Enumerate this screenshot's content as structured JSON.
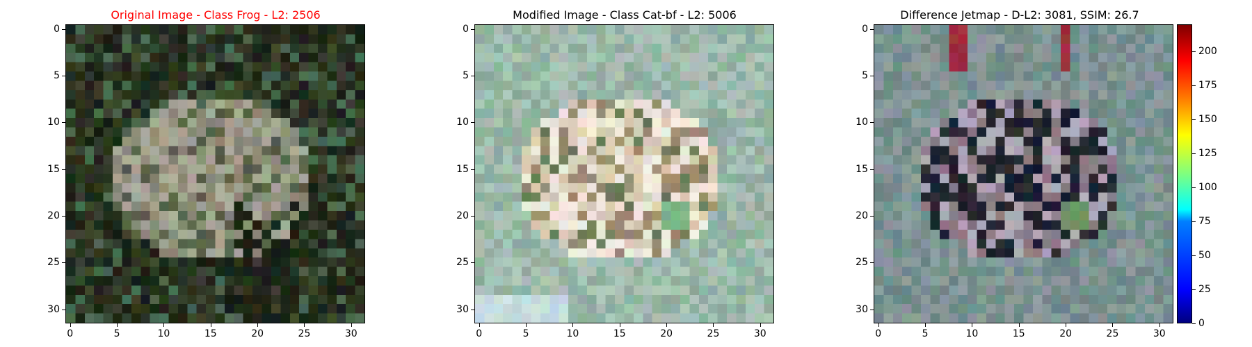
{
  "panels": [
    {
      "title": "Original Image - Class Frog - L2: 2506",
      "title_color": "#ff0000",
      "image": "frog-photo",
      "palette": [
        "#2a3320",
        "#3a4530",
        "#56604a",
        "#8c8c78",
        "#a8a896",
        "#1c2418",
        "#4a6a50"
      ]
    },
    {
      "title": "Modified Image - Class Cat-bf - L2: 5006",
      "title_color": "#000000",
      "image": "modified-photo",
      "palette": [
        "#8fb0a0",
        "#a9c2b6",
        "#d8cdb4",
        "#efe9de",
        "#9c8c70",
        "#6c7a5a",
        "#7fb487"
      ]
    },
    {
      "title": "Difference Jetmap - D-L2: 3081, SSIM: 26.7",
      "title_color": "#000000",
      "image": "difference-jetmap",
      "palette": [
        "#6f8c8a",
        "#8a9a9c",
        "#2a2a30",
        "#1a2030",
        "#8c7a86",
        "#b0a8b8",
        "#a03040"
      ]
    }
  ],
  "axis": {
    "x_ticks": [
      "0",
      "5",
      "10",
      "15",
      "20",
      "25",
      "30"
    ],
    "y_ticks": [
      "0",
      "5",
      "10",
      "15",
      "20",
      "25",
      "30"
    ]
  },
  "colorbar": {
    "ticks": [
      "0",
      "25",
      "50",
      "75",
      "100",
      "125",
      "150",
      "175",
      "200"
    ],
    "colormap": "jet",
    "max_value": 220
  }
}
